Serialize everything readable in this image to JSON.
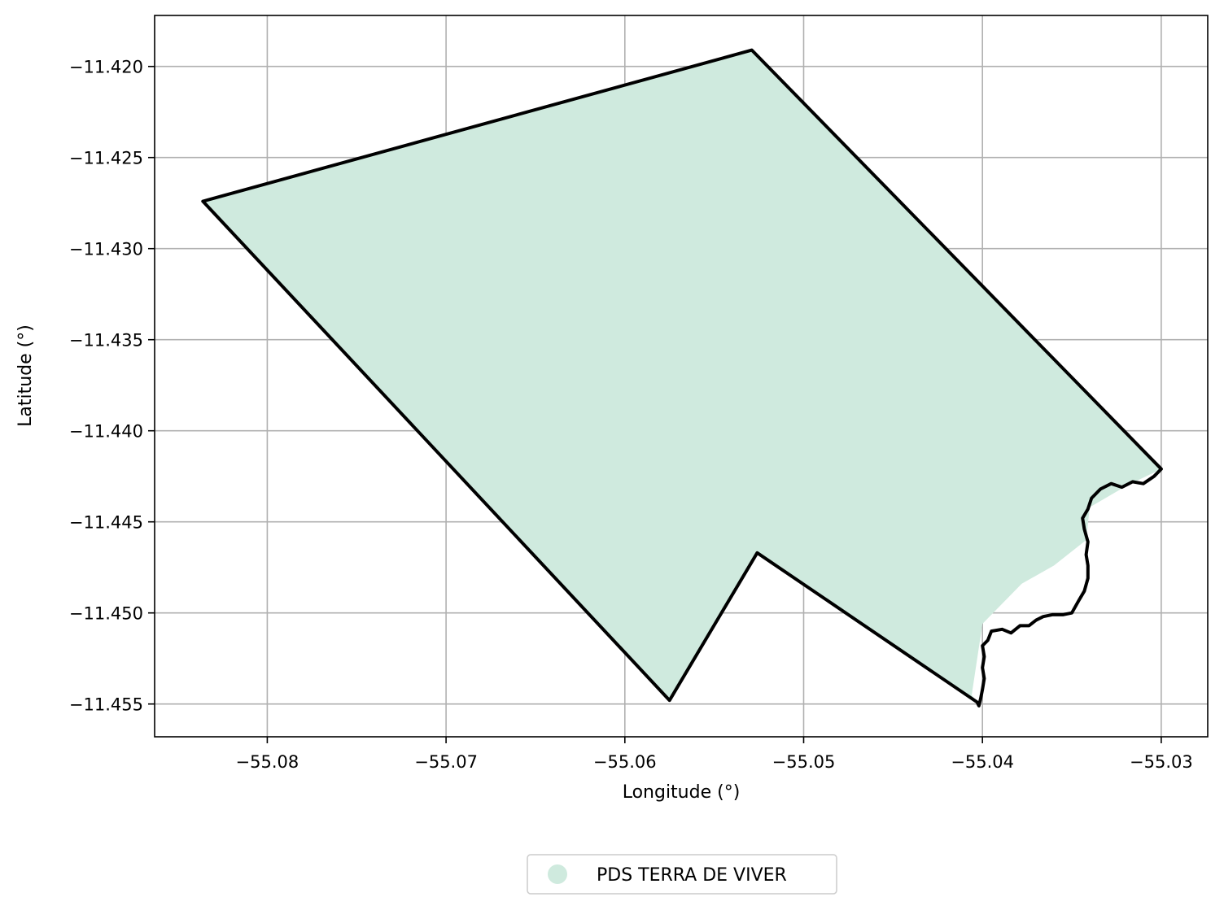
{
  "chart_data": {
    "type": "map",
    "xlabel": "Longitude (°)",
    "ylabel": "Latitude (°)",
    "xlim": [
      -55.0863,
      -55.0274
    ],
    "ylim": [
      -11.4568,
      -11.4172
    ],
    "xticks": [
      -55.08,
      -55.07,
      -55.06,
      -55.05,
      -55.04,
      -55.03
    ],
    "xtick_labels": [
      "−55.08",
      "−55.07",
      "−55.06",
      "−55.05",
      "−55.04",
      "−55.03"
    ],
    "yticks": [
      -11.42,
      -11.425,
      -11.43,
      -11.435,
      -11.44,
      -11.445,
      -11.45,
      -11.455
    ],
    "ytick_labels": [
      "−11.420",
      "−11.425",
      "−11.430",
      "−11.435",
      "−11.440",
      "−11.445",
      "−11.450",
      "−11.455"
    ],
    "grid": true,
    "legend_position": "bottom-center",
    "legend": [
      "PDS TERRA DE VIVER"
    ],
    "colors": {
      "fill": "#cfeade",
      "outline": "#000000",
      "grid": "#b0b0b0"
    },
    "series": [
      {
        "name": "PDS TERRA DE VIVER",
        "fill_polygon": [
          [
            -55.0836,
            -11.4274
          ],
          [
            -55.0529,
            -11.4191
          ],
          [
            -55.03,
            -11.4421
          ],
          [
            -55.0319,
            -11.443
          ],
          [
            -55.034,
            -11.4442
          ],
          [
            -55.0342,
            -11.446
          ],
          [
            -55.036,
            -11.4474
          ],
          [
            -55.0378,
            -11.4484
          ],
          [
            -55.04,
            -11.4506
          ],
          [
            -55.0406,
            -11.4545
          ],
          [
            -55.0403,
            -11.4549
          ],
          [
            -55.0526,
            -11.4467
          ],
          [
            -55.0575,
            -11.4548
          ],
          [
            -55.0836,
            -11.4274
          ]
        ],
        "outline": [
          [
            -55.0836,
            -11.4274
          ],
          [
            -55.0529,
            -11.4191
          ],
          [
            -55.03,
            -11.4421
          ],
          [
            -55.0304,
            -11.4425
          ],
          [
            -55.031,
            -11.4429
          ],
          [
            -55.0316,
            -11.4428
          ],
          [
            -55.0322,
            -11.4431
          ],
          [
            -55.0328,
            -11.4429
          ],
          [
            -55.0334,
            -11.4432
          ],
          [
            -55.0339,
            -11.4437
          ],
          [
            -55.0341,
            -11.4443
          ],
          [
            -55.0344,
            -11.4448
          ],
          [
            -55.0343,
            -11.4454
          ],
          [
            -55.0341,
            -11.4461
          ],
          [
            -55.0342,
            -11.4468
          ],
          [
            -55.0341,
            -11.4474
          ],
          [
            -55.0341,
            -11.4481
          ],
          [
            -55.0343,
            -11.4488
          ],
          [
            -55.0346,
            -11.4493
          ],
          [
            -55.035,
            -11.45
          ],
          [
            -55.0355,
            -11.4501
          ],
          [
            -55.0361,
            -11.4501
          ],
          [
            -55.0366,
            -11.4502
          ],
          [
            -55.037,
            -11.4504
          ],
          [
            -55.0374,
            -11.4507
          ],
          [
            -55.0379,
            -11.4507
          ],
          [
            -55.0384,
            -11.4511
          ],
          [
            -55.0389,
            -11.4509
          ],
          [
            -55.0395,
            -11.451
          ],
          [
            -55.0397,
            -11.4515
          ],
          [
            -55.04,
            -11.4518
          ],
          [
            -55.0399,
            -11.4524
          ],
          [
            -55.04,
            -11.453
          ],
          [
            -55.0399,
            -11.4536
          ],
          [
            -55.04,
            -11.4542
          ],
          [
            -55.0401,
            -11.4547
          ],
          [
            -55.0402,
            -11.4551
          ],
          [
            -55.0403,
            -11.4549
          ],
          [
            -55.0526,
            -11.4467
          ],
          [
            -55.0575,
            -11.4548
          ],
          [
            -55.0836,
            -11.4274
          ]
        ]
      }
    ]
  }
}
